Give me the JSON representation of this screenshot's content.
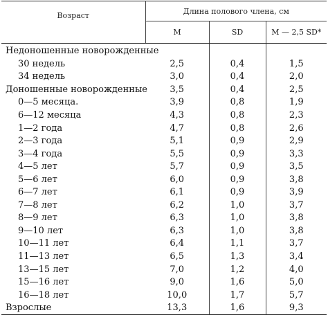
{
  "table": {
    "header": {
      "age": "Возраст",
      "group": "Длина полового члена, см",
      "col_m": "M",
      "col_sd": "SD",
      "col_m_sd": "M — 2,5 SD*"
    },
    "rows": [
      {
        "label": "Недоношенные новорожденные",
        "m": "",
        "sd": "",
        "msd": ""
      },
      {
        "label": "30 недель",
        "m": "2,5",
        "sd": "0,4",
        "msd": "1,5"
      },
      {
        "label": "34 недель",
        "m": "3,0",
        "sd": "0,4",
        "msd": "2,0"
      },
      {
        "label": "Доношенные новорожденные",
        "m": "3,5",
        "sd": "0,4",
        "msd": "2,5"
      },
      {
        "label": "0—5 месяца.",
        "m": "3,9",
        "sd": "0,8",
        "msd": "1,9"
      },
      {
        "label": "6—12 месяца",
        "m": "4,3",
        "sd": "0,8",
        "msd": "2,3"
      },
      {
        "label": "1—2 года",
        "m": "4,7",
        "sd": "0,8",
        "msd": "2,6"
      },
      {
        "label": "2—3 года",
        "m": "5,1",
        "sd": "0,9",
        "msd": "2,9"
      },
      {
        "label": "3—4 года",
        "m": "5,5",
        "sd": "0,9",
        "msd": "3,3"
      },
      {
        "label": "4—5 лет",
        "m": "5,7",
        "sd": "0,9",
        "msd": "3,5"
      },
      {
        "label": "5—6 лет",
        "m": "6,0",
        "sd": "0,9",
        "msd": "3,8"
      },
      {
        "label": "6—7 лет",
        "m": "6,1",
        "sd": "0,9",
        "msd": "3,9"
      },
      {
        "label": "7—8 лет",
        "m": "6,2",
        "sd": "1,0",
        "msd": "3,7"
      },
      {
        "label": "8—9 лет",
        "m": "6,3",
        "sd": "1,0",
        "msd": "3,8"
      },
      {
        "label": "9—10 лет",
        "m": "6,3",
        "sd": "1,0",
        "msd": "3,8"
      },
      {
        "label": "10—11 лет",
        "m": "6,4",
        "sd": "1,1",
        "msd": "3,7"
      },
      {
        "label": "11—13 лет",
        "m": "6,5",
        "sd": "1,3",
        "msd": "3,4"
      },
      {
        "label": "13—15 лет",
        "m": "7,0",
        "sd": "1,2",
        "msd": "4,0"
      },
      {
        "label": "15—16 лет",
        "m": "9,0",
        "sd": "1,6",
        "msd": "5,0"
      },
      {
        "label": "16—18 лет",
        "m": "10,0",
        "sd": "1,7",
        "msd": "5,7"
      },
      {
        "label": "Взрослые",
        "m": "13,3",
        "sd": "1,6",
        "msd": "9,3"
      }
    ]
  }
}
